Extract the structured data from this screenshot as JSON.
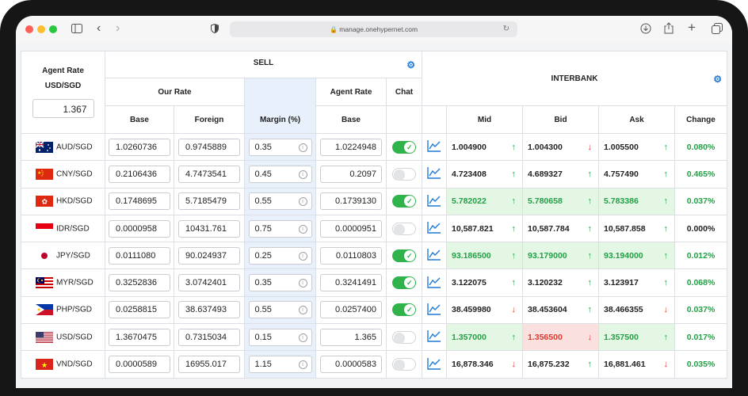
{
  "browser": {
    "url": "manage.onehypernet.com"
  },
  "header": {
    "agent_rate_label_1": "Agent Rate",
    "agent_rate_label_2": "USD/SGD",
    "agent_rate_value": "1.367",
    "sell": "SELL",
    "our_rate": "Our Rate",
    "agent_rate": "Agent Rate",
    "chat": "Chat",
    "base": "Base",
    "foreign": "Foreign",
    "margin": "Margin (%)",
    "interbank": "INTERBANK",
    "mid": "Mid",
    "bid": "Bid",
    "ask": "Ask",
    "change": "Change"
  },
  "rows": [
    {
      "pair": "AUD/SGD",
      "base": "1.0260736",
      "foreign": "0.9745889",
      "margin": "0.35",
      "agent_base": "1.0224948",
      "chat": "on",
      "mid": "1.004900",
      "bid": "1.004300",
      "ask": "1.005500",
      "change": "0.080%"
    },
    {
      "pair": "CNY/SGD",
      "base": "0.2106436",
      "foreign": "4.7473541",
      "margin": "0.45",
      "agent_base": "0.2097",
      "chat": "off",
      "mid": "4.723408",
      "bid": "4.689327",
      "ask": "4.757490",
      "change": "0.465%"
    },
    {
      "pair": "HKD/SGD",
      "base": "0.1748695",
      "foreign": "5.7185479",
      "margin": "0.55",
      "agent_base": "0.1739130",
      "chat": "on",
      "mid": "5.782022",
      "bid": "5.780658",
      "ask": "5.783386",
      "change": "0.037%"
    },
    {
      "pair": "IDR/SGD",
      "base": "0.0000958",
      "foreign": "10431.761",
      "margin": "0.75",
      "agent_base": "0.0000951",
      "chat": "off",
      "mid": "10,587.821",
      "bid": "10,587.784",
      "ask": "10,587.858",
      "change": "0.000%"
    },
    {
      "pair": "JPY/SGD",
      "base": "0.0111080",
      "foreign": "90.024937",
      "margin": "0.25",
      "agent_base": "0.0110803",
      "chat": "on",
      "mid": "93.186500",
      "bid": "93.179000",
      "ask": "93.194000",
      "change": "0.012%"
    },
    {
      "pair": "MYR/SGD",
      "base": "0.3252836",
      "foreign": "3.0742401",
      "margin": "0.35",
      "agent_base": "0.3241491",
      "chat": "on",
      "mid": "3.122075",
      "bid": "3.120232",
      "ask": "3.123917",
      "change": "0.068%"
    },
    {
      "pair": "PHP/SGD",
      "base": "0.0258815",
      "foreign": "38.637493",
      "margin": "0.55",
      "agent_base": "0.0257400",
      "chat": "on",
      "mid": "38.459980",
      "bid": "38.453604",
      "ask": "38.466355",
      "change": "0.037%"
    },
    {
      "pair": "USD/SGD",
      "base": "1.3670475",
      "foreign": "0.7315034",
      "margin": "0.15",
      "agent_base": "1.365",
      "chat": "off",
      "mid": "1.357000",
      "bid": "1.356500",
      "ask": "1.357500",
      "change": "0.017%"
    },
    {
      "pair": "VND/SGD",
      "base": "0.0000589",
      "foreign": "16955.017",
      "margin": "1.15",
      "agent_base": "0.0000583",
      "chat": "off",
      "mid": "16,878.346",
      "bid": "16,875.232",
      "ask": "16,881.461",
      "change": "0.035%"
    }
  ]
}
